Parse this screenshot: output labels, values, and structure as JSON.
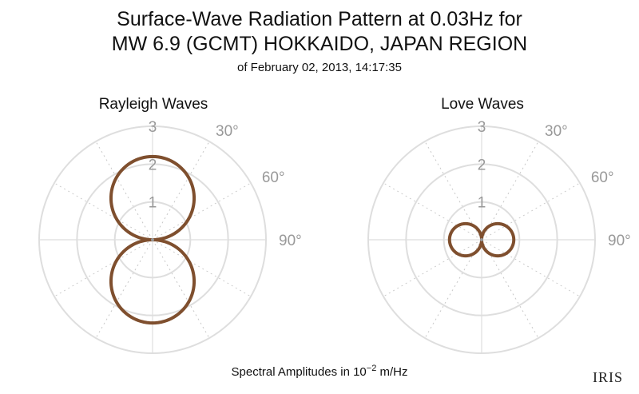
{
  "title": "Surface-Wave Radiation Pattern at 0.03Hz for",
  "title_line2": "MW 6.9 (GCMT) HOKKAIDO, JAPAN REGION",
  "subtitle": "of February 02, 2013, 14:17:35",
  "xlabel_prefix": "Spectral Amplitudes in 10",
  "xlabel_exponent": "−2",
  "xlabel_suffix": " m/Hz",
  "logo_text": "IRIS",
  "colors": {
    "curve": "#7f4f2e",
    "grid": "#dedede",
    "label": "#999999"
  },
  "chart_data": [
    {
      "type": "polar-line",
      "title": "Rayleigh Waves",
      "rmax": 3,
      "radial_ticks": [
        "1",
        "2",
        "3"
      ],
      "angle_ticks": [
        "30°",
        "60°",
        "90°"
      ],
      "angle_tick_values": [
        30,
        60,
        90
      ],
      "grid": true,
      "pattern": {
        "form": "two-lobe |cos|",
        "lobe_axis_deg": [
          0,
          180
        ],
        "max_amplitude": 2.2,
        "min_amplitude": 0.0
      }
    },
    {
      "type": "polar-line",
      "title": "Love Waves",
      "rmax": 3,
      "radial_ticks": [
        "1",
        "2",
        "3"
      ],
      "angle_ticks": [
        "30°",
        "60°",
        "90°"
      ],
      "angle_tick_values": [
        30,
        60,
        90
      ],
      "grid": true,
      "pattern": {
        "form": "two-lobe |sin|",
        "lobe_axis_deg": [
          90,
          270
        ],
        "max_amplitude": 0.85,
        "min_amplitude": 0.0
      }
    }
  ]
}
